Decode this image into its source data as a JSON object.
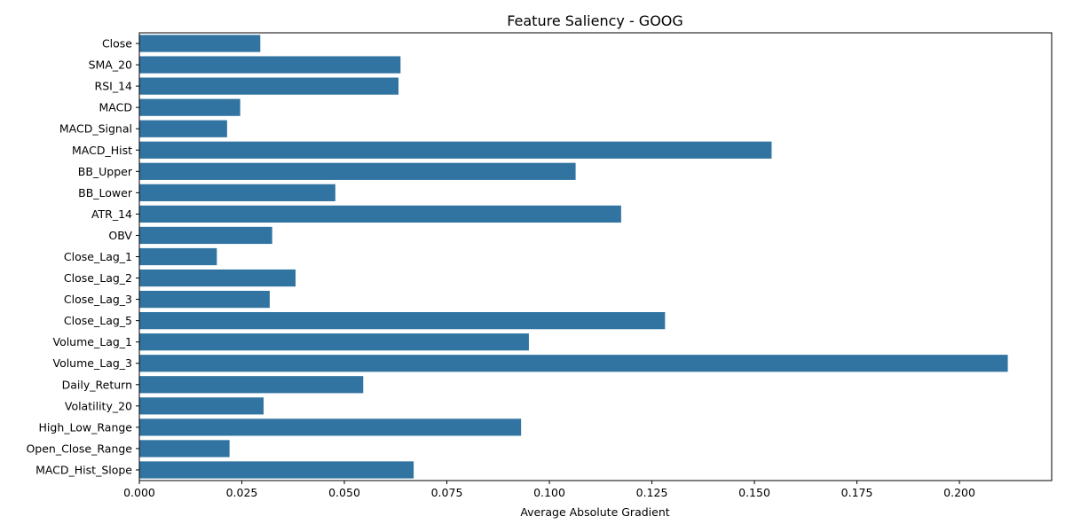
{
  "chart_data": {
    "type": "bar",
    "orientation": "horizontal",
    "title": "Feature Saliency - GOOG",
    "xlabel": "Average Absolute Gradient",
    "ylabel": "",
    "xlim": [
      0,
      0.2225
    ],
    "xticks": [
      0.0,
      0.025,
      0.05,
      0.075,
      0.1,
      0.125,
      0.15,
      0.175,
      0.2
    ],
    "xtick_labels": [
      "0.000",
      "0.025",
      "0.050",
      "0.075",
      "0.100",
      "0.125",
      "0.150",
      "0.175",
      "0.200"
    ],
    "grid": false,
    "bar_color": "#3274a1",
    "categories": [
      "Close",
      "SMA_20",
      "RSI_14",
      "MACD",
      "MACD_Signal",
      "MACD_Hist",
      "BB_Upper",
      "BB_Lower",
      "ATR_14",
      "OBV",
      "Close_Lag_1",
      "Close_Lag_2",
      "Close_Lag_3",
      "Close_Lag_5",
      "Volume_Lag_1",
      "Volume_Lag_3",
      "Daily_Return",
      "Volatility_20",
      "High_Low_Range",
      "Open_Close_Range",
      "MACD_Hist_Slope"
    ],
    "values": [
      0.0295,
      0.0637,
      0.0632,
      0.0246,
      0.0214,
      0.1542,
      0.1064,
      0.0478,
      0.1175,
      0.0324,
      0.0189,
      0.0381,
      0.0318,
      0.1282,
      0.095,
      0.2118,
      0.0546,
      0.0303,
      0.0931,
      0.022,
      0.0669
    ]
  }
}
